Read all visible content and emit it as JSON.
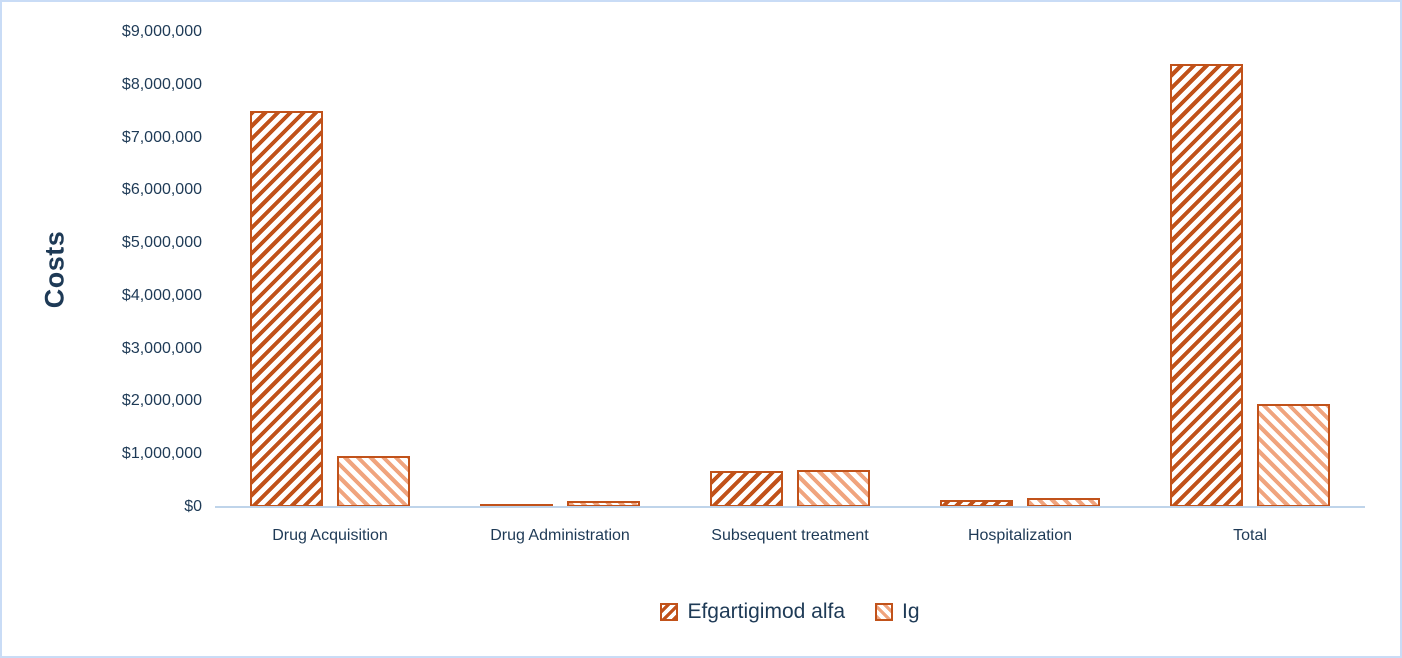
{
  "frame": {
    "background": "#ffffff",
    "border_color": "#c9dcf6"
  },
  "chart_data": {
    "type": "bar",
    "title": "",
    "xlabel": "",
    "ylabel": "Costs",
    "categories": [
      "Drug Acquisition",
      "Drug Administration",
      "Subsequent treatment",
      "Hospitalization",
      "Total"
    ],
    "series": [
      {
        "name": "Efgartigimod alfa",
        "values": [
          7500000,
          60000,
          690000,
          140000,
          8400000
        ],
        "pattern": "diagonal-forward",
        "stripe_color": "#c1521a",
        "border_color": "#c1521a"
      },
      {
        "name": "Ig",
        "values": [
          970000,
          110000,
          700000,
          175000,
          1960000
        ],
        "pattern": "diagonal-backward",
        "stripe_color": "#f0a47e",
        "border_color": "#c1521a"
      }
    ],
    "y_axis": {
      "min": 0,
      "max": 9000000,
      "tick_step": 1000000,
      "tick_labels": [
        "$0",
        "$1,000,000",
        "$2,000,000",
        "$3,000,000",
        "$4,000,000",
        "$5,000,000",
        "$6,000,000",
        "$7,000,000",
        "$8,000,000",
        "$9,000,000"
      ]
    },
    "ylim": [
      0,
      9000000
    ],
    "grid": false,
    "legend_position": "bottom",
    "axis_line_color": "#bfd4ea",
    "text_color": "#1e3a56"
  }
}
